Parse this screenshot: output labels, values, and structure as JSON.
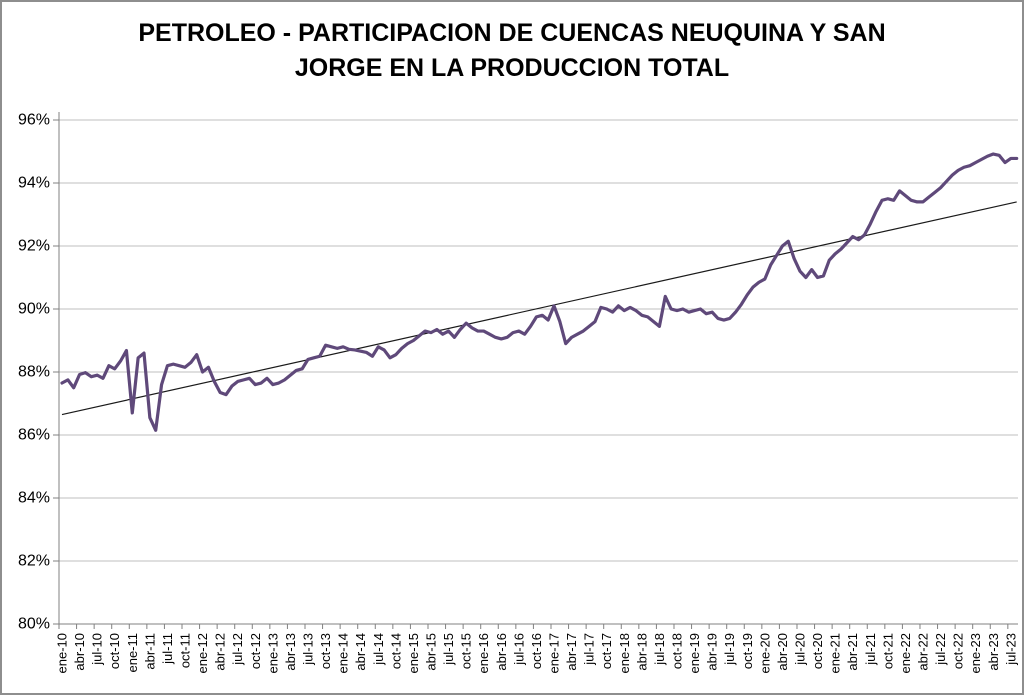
{
  "canvas": {
    "background_color": "#FFFFFF",
    "border_color": "#8E8E8E"
  },
  "chart_data": {
    "type": "line",
    "title": "PETROLEO - PARTICIPACION DE CUENCAS NEUQUINA Y SAN JORGE EN LA PRODUCCION TOTAL",
    "title_lines": [
      "PETROLEO - PARTICIPACION DE CUENCAS NEUQUINA Y SAN",
      "JORGE EN LA PRODUCCION TOTAL"
    ],
    "legend": "none",
    "grid": "horizontal",
    "grid_color": "#BFBFBF",
    "axis_color": "#808080",
    "y_axis": {
      "min": 80,
      "max": 96,
      "step": 2,
      "unit": "%",
      "tick_labels_top_to_bottom": [
        "96%",
        "94%",
        "92%",
        "90%",
        "88%",
        "86%",
        "84%",
        "82%",
        "80%"
      ]
    },
    "x_axis": {
      "data_frequency": "monthly",
      "labels_every_n_months": 3,
      "tick_labels": [
        "ene-10",
        "abr-10",
        "jul-10",
        "oct-10",
        "ene-11",
        "abr-11",
        "jul-11",
        "oct-11",
        "ene-12",
        "abr-12",
        "jul-12",
        "oct-12",
        "ene-13",
        "abr-13",
        "jul-13",
        "oct-13",
        "ene-14",
        "abr-14",
        "jul-14",
        "oct-14",
        "ene-15",
        "abr-15",
        "jul-15",
        "oct-15",
        "ene-16",
        "abr-16",
        "jul-16",
        "oct-16",
        "ene-17",
        "abr-17",
        "jul-17",
        "oct-17",
        "ene-18",
        "abr-18",
        "jul-18",
        "oct-18",
        "ene-19",
        "abr-19",
        "jul-19",
        "oct-19",
        "ene-20",
        "abr-20",
        "jul-20",
        "oct-20",
        "ene-21",
        "abr-21",
        "jul-21",
        "oct-21",
        "ene-22",
        "abr-22",
        "jul-22",
        "oct-22",
        "ene-23",
        "abr-23",
        "jul-23"
      ]
    },
    "series": [
      {
        "name": "participacion-cuencas-neuquina-san-jorge",
        "color": "#5F497A",
        "stroke_width": 3.2,
        "first_month": "ene-10",
        "values_percent": [
          87.65,
          87.75,
          87.5,
          87.92,
          87.98,
          87.85,
          87.9,
          87.8,
          88.2,
          88.1,
          88.35,
          88.68,
          86.7,
          88.45,
          88.6,
          86.55,
          86.15,
          87.6,
          88.2,
          88.25,
          88.2,
          88.15,
          88.3,
          88.55,
          88.0,
          88.15,
          87.7,
          87.35,
          87.28,
          87.55,
          87.7,
          87.75,
          87.8,
          87.6,
          87.65,
          87.8,
          87.6,
          87.65,
          87.75,
          87.9,
          88.05,
          88.1,
          88.4,
          88.45,
          88.5,
          88.85,
          88.8,
          88.75,
          88.8,
          88.72,
          88.7,
          88.66,
          88.62,
          88.5,
          88.8,
          88.7,
          88.45,
          88.55,
          88.75,
          88.9,
          89.0,
          89.15,
          89.3,
          89.25,
          89.35,
          89.2,
          89.3,
          89.1,
          89.35,
          89.55,
          89.4,
          89.3,
          89.3,
          89.2,
          89.1,
          89.05,
          89.1,
          89.25,
          89.3,
          89.2,
          89.45,
          89.75,
          89.8,
          89.65,
          90.1,
          89.6,
          88.9,
          89.1,
          89.2,
          89.3,
          89.45,
          89.6,
          90.05,
          90.0,
          89.9,
          90.1,
          89.95,
          90.05,
          89.95,
          89.8,
          89.75,
          89.6,
          89.45,
          90.4,
          90.0,
          89.95,
          90.0,
          89.9,
          89.95,
          90.0,
          89.85,
          89.9,
          89.7,
          89.65,
          89.7,
          89.9,
          90.15,
          90.45,
          90.7,
          90.85,
          90.95,
          91.4,
          91.7,
          92.0,
          92.15,
          91.6,
          91.2,
          91.0,
          91.25,
          91.0,
          91.05,
          91.55,
          91.75,
          91.9,
          92.1,
          92.3,
          92.2,
          92.35,
          92.7,
          93.1,
          93.45,
          93.5,
          93.45,
          93.75,
          93.6,
          93.45,
          93.4,
          93.4,
          93.55,
          93.7,
          93.85,
          94.05,
          94.25,
          94.4,
          94.5,
          94.55,
          94.65,
          94.75,
          94.85,
          94.92,
          94.88,
          94.65,
          94.78,
          94.78
        ]
      },
      {
        "name": "linear-trendline",
        "color": "#1A1A1A",
        "stroke_width": 1.2,
        "start_value_percent": 86.65,
        "end_value_percent": 93.4
      }
    ]
  }
}
